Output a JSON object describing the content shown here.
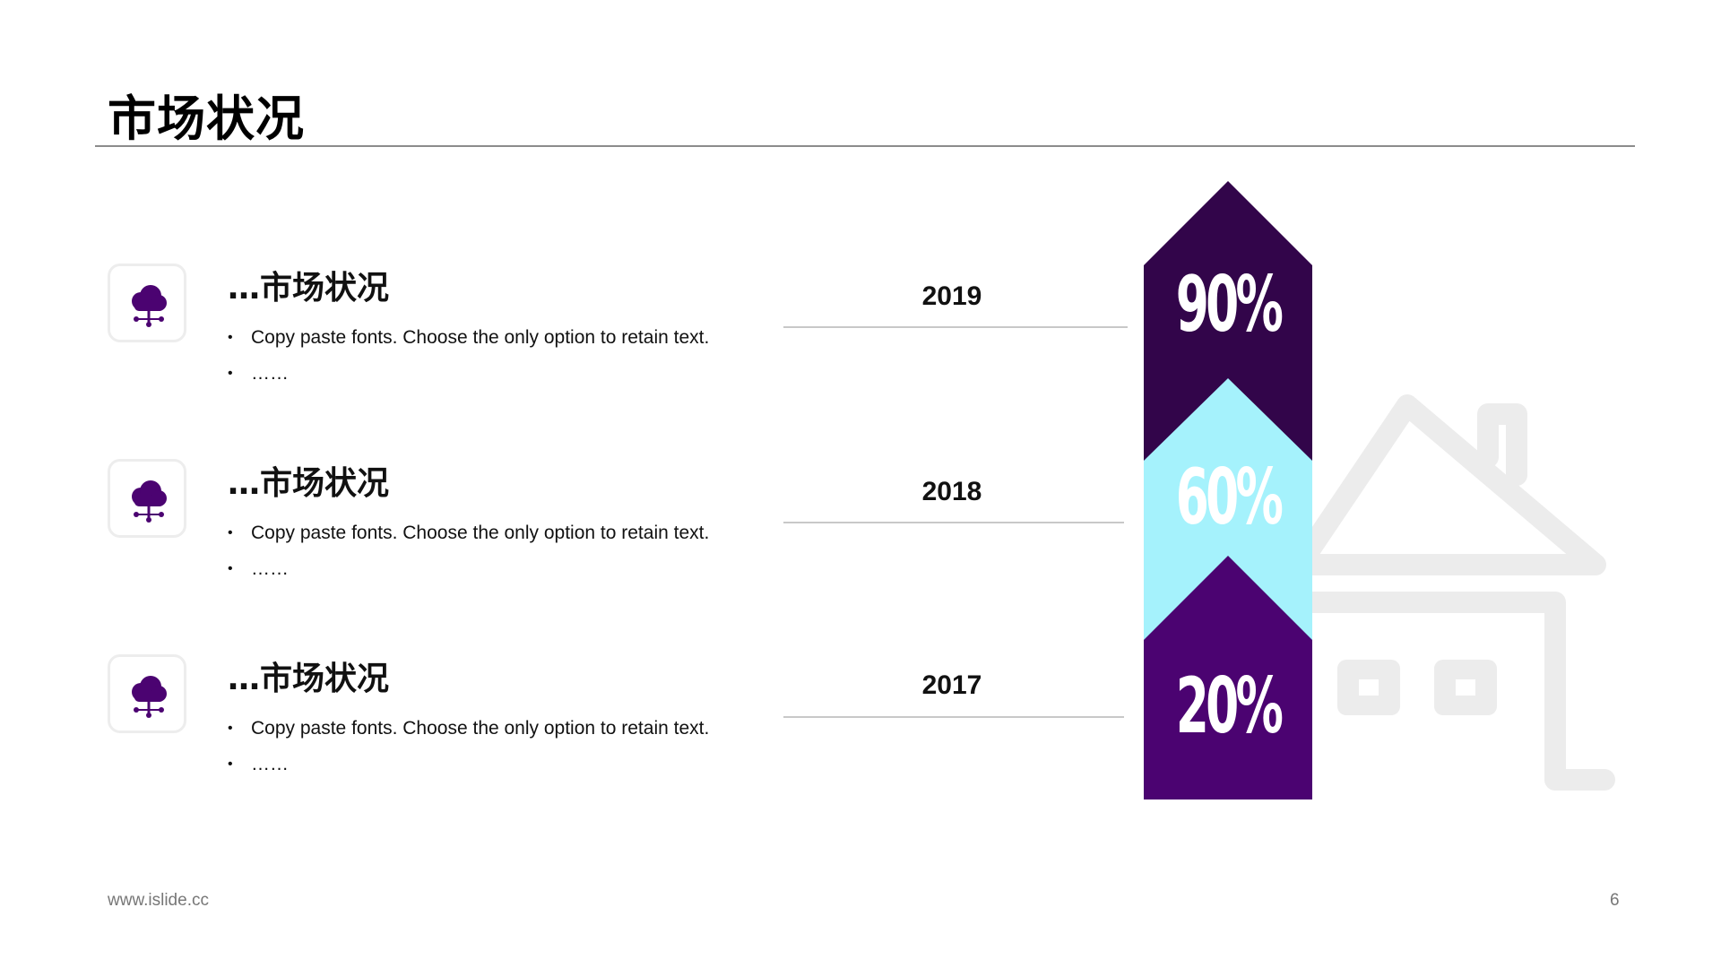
{
  "slide": {
    "title": "市场状况",
    "footer_url": "www.islide.cc",
    "page_number": "6"
  },
  "items": [
    {
      "icon": "cloud-network-icon",
      "heading": "…市场状况",
      "bullets": [
        "Copy paste fonts. Choose the only option to retain text.",
        "……"
      ],
      "year": "2019"
    },
    {
      "icon": "cloud-network-icon",
      "heading": "…市场状况",
      "bullets": [
        "Copy paste fonts. Choose the only option to retain text.",
        "……"
      ],
      "year": "2018"
    },
    {
      "icon": "cloud-network-icon",
      "heading": "…市场状况",
      "bullets": [
        "Copy paste fonts. Choose the only option to retain text.",
        "……"
      ],
      "year": "2017"
    }
  ],
  "chart_data": {
    "type": "bar",
    "categories": [
      "2019",
      "2018",
      "2017"
    ],
    "values": [
      90,
      60,
      20
    ],
    "labels": [
      "90%",
      "60%",
      "20%"
    ],
    "colors": [
      "#32054a",
      "#a5f2fc",
      "#4b0371"
    ],
    "label_colors": [
      "#ffffff",
      "#ffffff",
      "#ffffff"
    ]
  },
  "decor": {
    "background_icon": "house-icon",
    "accent_color": "#4b0371"
  }
}
